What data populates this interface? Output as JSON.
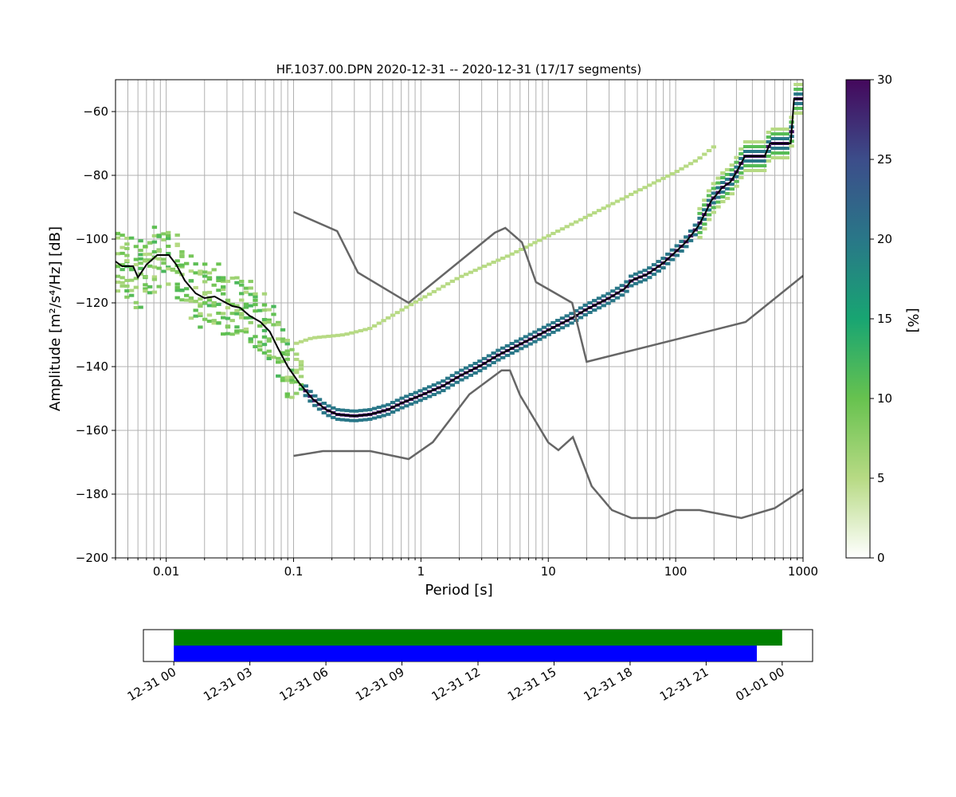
{
  "chart_data": [
    {
      "type": "heatmap",
      "title": "HF.1037.00.DPN   2020-12-31 -- 2020-12-31  (17/17 segments)",
      "xlabel": "Period [s]",
      "ylabel": "Amplitude [m²/s⁴/Hz] [dB]",
      "x_scale": "log",
      "xlim": [
        0.004,
        1000
      ],
      "ylim": [
        -200,
        -50
      ],
      "x_ticks": [
        0.01,
        0.1,
        1,
        10,
        100,
        1000
      ],
      "x_tick_labels": [
        "0.01",
        "0.1",
        "1",
        "10",
        "100",
        "1000"
      ],
      "y_ticks": [
        -200,
        -180,
        -160,
        -140,
        -120,
        -100,
        -80,
        -60
      ],
      "y_tick_labels": [
        "−200",
        "−180",
        "−160",
        "−140",
        "−120",
        "−100",
        "−80",
        "−60"
      ],
      "grid": true,
      "colorbar": {
        "label": "[%]",
        "range": [
          0,
          30
        ],
        "ticks": [
          0,
          5,
          10,
          15,
          20,
          25,
          30
        ],
        "colormap": [
          "#ffffff",
          "#b7da84",
          "#67c24f",
          "#18a572",
          "#297788",
          "#3c4d8a",
          "#44085c"
        ]
      },
      "series": [
        {
          "role": "mode",
          "color": "#000000",
          "points": [
            [
              0.004,
              -107
            ],
            [
              0.0045,
              -108.5
            ],
            [
              0.0055,
              -108.5
            ],
            [
              0.006,
              -112
            ],
            [
              0.007,
              -108
            ],
            [
              0.0085,
              -105
            ],
            [
              0.0105,
              -105
            ],
            [
              0.012,
              -108
            ],
            [
              0.014,
              -113
            ],
            [
              0.017,
              -117
            ],
            [
              0.02,
              -118.5
            ],
            [
              0.024,
              -118
            ],
            [
              0.028,
              -119.5
            ],
            [
              0.033,
              -121
            ],
            [
              0.038,
              -121.5
            ],
            [
              0.045,
              -124
            ],
            [
              0.055,
              -126
            ],
            [
              0.065,
              -129
            ],
            [
              0.075,
              -134
            ],
            [
              0.09,
              -140
            ],
            [
              0.11,
              -145
            ],
            [
              0.14,
              -150
            ],
            [
              0.18,
              -153.5
            ],
            [
              0.22,
              -155
            ],
            [
              0.3,
              -155.5
            ],
            [
              0.4,
              -155
            ],
            [
              0.55,
              -153.5
            ],
            [
              0.7,
              -151.5
            ],
            [
              1,
              -149
            ],
            [
              1.5,
              -146
            ],
            [
              2,
              -143
            ],
            [
              3,
              -139.5
            ],
            [
              4,
              -136.5
            ],
            [
              6,
              -133
            ],
            [
              8,
              -130.5
            ],
            [
              10,
              -128.5
            ],
            [
              15,
              -125
            ],
            [
              20,
              -122
            ],
            [
              30,
              -118.5
            ],
            [
              40,
              -115.5
            ],
            [
              45,
              -113
            ],
            [
              60,
              -111
            ],
            [
              80,
              -107.5
            ],
            [
              100,
              -104
            ],
            [
              120,
              -101
            ],
            [
              150,
              -96
            ],
            [
              170,
              -92
            ],
            [
              190,
              -88
            ],
            [
              210,
              -86
            ],
            [
              230,
              -84
            ],
            [
              270,
              -82
            ],
            [
              300,
              -79
            ],
            [
              350,
              -74
            ],
            [
              500,
              -74
            ],
            [
              550,
              -70
            ],
            [
              800,
              -70
            ],
            [
              850,
              -56
            ],
            [
              1000,
              -56
            ]
          ]
        },
        {
          "role": "noise-model-upper",
          "color": "#666666",
          "points": [
            [
              0.1,
              -91.5
            ],
            [
              0.22,
              -97.5
            ],
            [
              0.32,
              -110.5
            ],
            [
              0.8,
              -120
            ],
            [
              3.8,
              -98
            ],
            [
              4.6,
              -96.5
            ],
            [
              6.2,
              -101
            ],
            [
              8,
              -113.5
            ],
            [
              15.4,
              -120
            ],
            [
              20,
              -138.5
            ],
            [
              354,
              -126
            ],
            [
              1000,
              -111.5
            ]
          ]
        },
        {
          "role": "noise-model-lower",
          "color": "#666666",
          "points": [
            [
              0.1,
              -168
            ],
            [
              0.17,
              -166.5
            ],
            [
              0.4,
              -166.5
            ],
            [
              0.8,
              -169
            ],
            [
              1.24,
              -163.7
            ],
            [
              2.4,
              -148.7
            ],
            [
              4.3,
              -141.2
            ],
            [
              5,
              -141.2
            ],
            [
              6,
              -149
            ],
            [
              10,
              -163.8
            ],
            [
              12,
              -166.2
            ],
            [
              15.6,
              -162.1
            ],
            [
              21.9,
              -177.5
            ],
            [
              31.6,
              -185
            ],
            [
              45,
              -187.5
            ],
            [
              70,
              -187.5
            ],
            [
              101,
              -185
            ],
            [
              154,
              -185
            ],
            [
              328,
              -187.5
            ],
            [
              600,
              -184.4
            ],
            [
              1000,
              -178.5
            ]
          ]
        },
        {
          "role": "cluster-line",
          "color": "#b7da84",
          "points": [
            [
              0.1,
              -133
            ],
            [
              0.14,
              -131
            ],
            [
              0.25,
              -130
            ],
            [
              0.4,
              -128
            ],
            [
              0.8,
              -121
            ],
            [
              2,
              -112
            ],
            [
              5,
              -105
            ],
            [
              10,
              -99
            ],
            [
              20,
              -93
            ],
            [
              50,
              -85
            ],
            [
              100,
              -79
            ],
            [
              150,
              -75
            ],
            [
              200,
              -71
            ]
          ]
        }
      ]
    },
    {
      "type": "bar",
      "xlabel": "",
      "x_ticks": [
        "12-31 00",
        "12-31 03",
        "12-31 06",
        "12-31 09",
        "12-31 12",
        "12-31 15",
        "12-31 18",
        "12-31 21",
        "01-01 00"
      ],
      "xlim": [
        "2020-12-30 22:48",
        "2021-01-01 01:12"
      ],
      "series": [
        {
          "color": "#008000",
          "start": "2020-12-31 00:00",
          "end": "2020-12-31 24:00"
        },
        {
          "color": "#0000ff",
          "start": "2020-12-31 00:00",
          "end": "2020-12-31 23:00"
        }
      ]
    }
  ]
}
